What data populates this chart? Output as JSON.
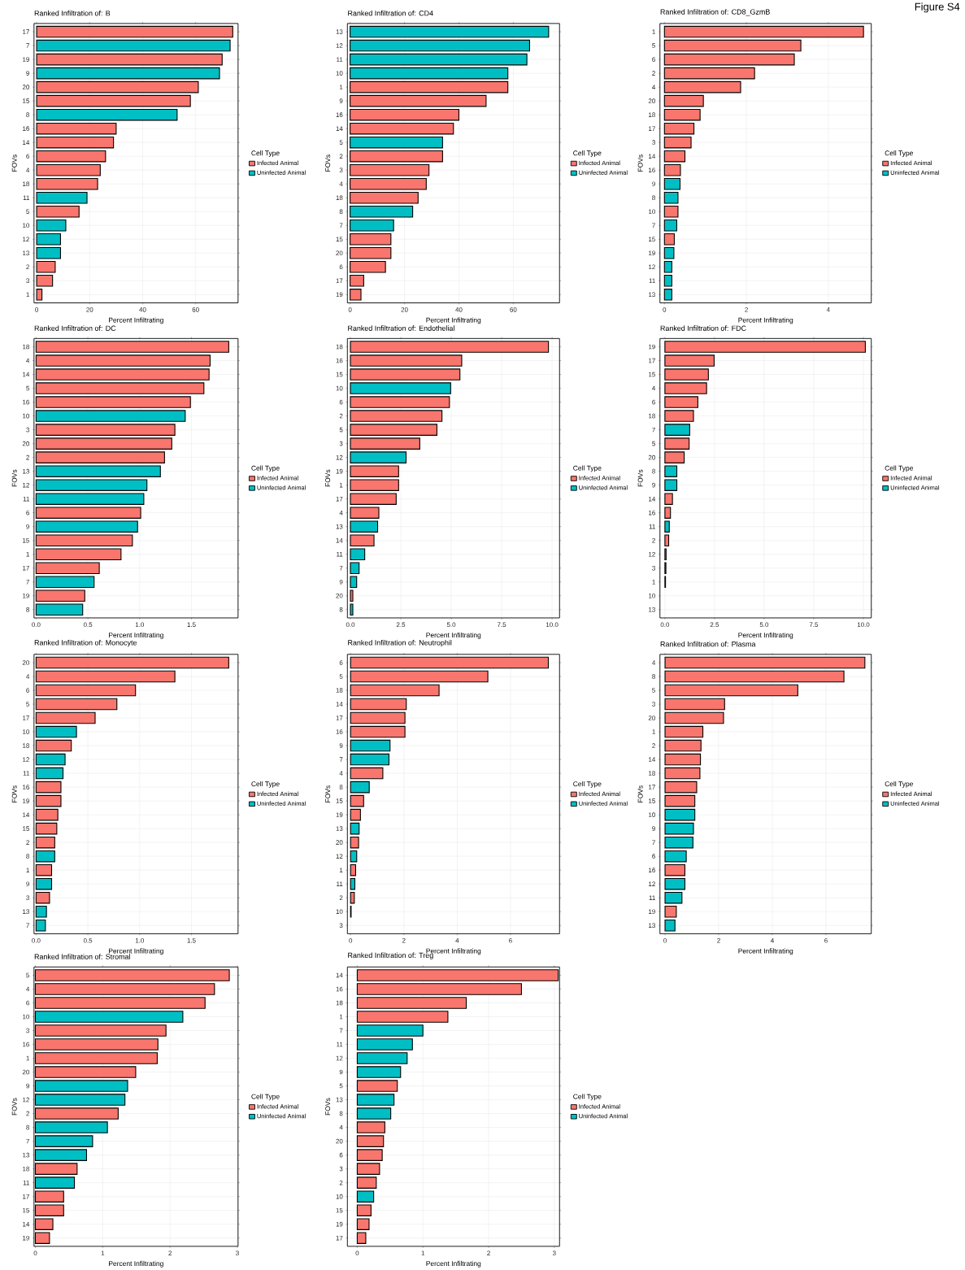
{
  "chart_data": [
    {
      "type": "bar",
      "orientation": "horizontal",
      "title": "Ranked Infiltration of: B",
      "xlabel": "Percent Infiltrating",
      "ylabel": "FOVs",
      "legend_title": "Cell Type",
      "legend": "right",
      "grid": true,
      "categories": [
        "17",
        "7",
        "19",
        "9",
        "20",
        "15",
        "8",
        "16",
        "14",
        "6",
        "4",
        "18",
        "11",
        "5",
        "10",
        "12",
        "13",
        "2",
        "3",
        "1"
      ],
      "series": [
        {
          "name": "Infected Animal",
          "color": "#f8766d",
          "values": [
            74,
            null,
            70,
            null,
            61,
            58,
            null,
            30,
            29,
            26,
            24,
            23,
            null,
            16,
            null,
            null,
            null,
            7,
            6,
            2
          ]
        },
        {
          "name": "Uninfected Animal",
          "color": "#00bfc4",
          "values": [
            null,
            73,
            null,
            69,
            null,
            null,
            53,
            null,
            null,
            null,
            null,
            null,
            19,
            null,
            11,
            9,
            9,
            null,
            null,
            null
          ]
        }
      ],
      "xlim": [
        -1,
        76
      ],
      "xticks": [
        0,
        20,
        40,
        60
      ]
    },
    {
      "type": "bar",
      "orientation": "horizontal",
      "title": "Ranked Infiltration of: CD4",
      "xlabel": "Percent Infiltrating",
      "ylabel": "FOVs",
      "legend_title": "Cell Type",
      "legend": "right",
      "grid": true,
      "categories": [
        "13",
        "12",
        "11",
        "10",
        "1",
        "9",
        "16",
        "14",
        "5",
        "2",
        "3",
        "4",
        "18",
        "8",
        "7",
        "15",
        "20",
        "6",
        "17",
        "19"
      ],
      "series": [
        {
          "name": "Infected Animal",
          "color": "#f8766d",
          "values": [
            null,
            null,
            null,
            null,
            58,
            50,
            40,
            38,
            null,
            34,
            29,
            28,
            25,
            null,
            null,
            15,
            15,
            13,
            5,
            4
          ]
        },
        {
          "name": "Uninfected Animal",
          "color": "#00bfc4",
          "values": [
            73,
            66,
            65,
            58,
            null,
            null,
            null,
            null,
            34,
            null,
            null,
            null,
            null,
            23,
            16,
            null,
            null,
            null,
            null,
            null
          ]
        }
      ],
      "xlim": [
        -1,
        77
      ],
      "xticks": [
        0,
        20,
        40,
        60
      ]
    },
    {
      "type": "bar",
      "orientation": "horizontal",
      "title": "Ranked Infiltration of: CD8_GzmB",
      "xlabel": "Percent Infiltrating",
      "ylabel": "FOVs",
      "legend_title": "Cell Type",
      "legend": "right",
      "grid": true,
      "annotations": [
        "Figure S4"
      ],
      "categories": [
        "1",
        "5",
        "6",
        "2",
        "4",
        "20",
        "18",
        "17",
        "3",
        "14",
        "16",
        "9",
        "8",
        "10",
        "7",
        "15",
        "19",
        "12",
        "11",
        "13"
      ],
      "series": [
        {
          "name": "Infected Animal",
          "color": "#f8766d",
          "values": [
            4.86,
            3.33,
            3.17,
            2.2,
            1.86,
            0.95,
            0.87,
            0.72,
            0.65,
            0.5,
            0.39,
            null,
            null,
            0.33,
            null,
            0.24,
            null,
            null,
            null,
            null
          ]
        },
        {
          "name": "Uninfected Animal",
          "color": "#00bfc4",
          "values": [
            null,
            null,
            null,
            null,
            null,
            null,
            null,
            null,
            null,
            null,
            null,
            0.38,
            0.33,
            null,
            0.3,
            null,
            0.23,
            0.18,
            0.18,
            0.18
          ]
        }
      ],
      "xlim": [
        -0.11,
        5.05
      ],
      "xticks": [
        0,
        2,
        4
      ]
    },
    {
      "type": "bar",
      "orientation": "horizontal",
      "title": "Ranked Infiltration of: DC",
      "xlabel": "Percent Infiltrating",
      "ylabel": "FOVs",
      "legend_title": "Cell Type",
      "legend": "right",
      "grid": true,
      "categories": [
        "18",
        "4",
        "14",
        "5",
        "16",
        "10",
        "3",
        "20",
        "2",
        "13",
        "12",
        "11",
        "6",
        "9",
        "15",
        "1",
        "17",
        "7",
        "19",
        "8"
      ],
      "series": [
        {
          "name": "Infected Animal",
          "color": "#f8766d",
          "values": [
            1.86,
            1.68,
            1.67,
            1.62,
            1.49,
            null,
            1.34,
            1.31,
            1.24,
            null,
            null,
            null,
            1.01,
            null,
            0.93,
            0.82,
            0.61,
            null,
            0.47,
            null
          ]
        },
        {
          "name": "Uninfected Animal",
          "color": "#00bfc4",
          "values": [
            null,
            null,
            null,
            null,
            null,
            1.44,
            null,
            null,
            null,
            1.2,
            1.07,
            1.04,
            null,
            0.98,
            null,
            null,
            null,
            0.56,
            null,
            0.45
          ]
        }
      ],
      "xlim": [
        -0.02,
        1.95
      ],
      "xticks": [
        {
          "value": 0,
          "label": "0.0"
        },
        {
          "value": 0.5,
          "label": "0.5"
        },
        {
          "value": 1,
          "label": "1.0"
        },
        {
          "value": 1.5,
          "label": "1.5"
        }
      ]
    },
    {
      "type": "bar",
      "orientation": "horizontal",
      "title": "Ranked Infiltration of: Endothelial",
      "xlabel": "Percent Infiltrating",
      "ylabel": "FOVs",
      "legend_title": "Cell Type",
      "legend": "right",
      "grid": true,
      "categories": [
        "18",
        "16",
        "15",
        "10",
        "6",
        "2",
        "5",
        "3",
        "12",
        "19",
        "1",
        "17",
        "4",
        "13",
        "14",
        "11",
        "7",
        "9",
        "20",
        "8"
      ],
      "series": [
        {
          "name": "Infected Animal",
          "color": "#f8766d",
          "values": [
            9.82,
            5.52,
            5.43,
            null,
            4.91,
            4.54,
            4.29,
            3.44,
            null,
            2.39,
            2.39,
            2.27,
            1.41,
            null,
            1.17,
            null,
            null,
            null,
            0.12,
            null
          ]
        },
        {
          "name": "Uninfected Animal",
          "color": "#00bfc4",
          "values": [
            null,
            null,
            null,
            4.97,
            null,
            null,
            null,
            null,
            2.76,
            null,
            null,
            null,
            null,
            1.35,
            null,
            0.71,
            0.43,
            0.31,
            null,
            0.12
          ]
        }
      ],
      "xlim": [
        -0.15,
        10.37
      ],
      "xticks": [
        {
          "value": 0,
          "label": "0.0"
        },
        {
          "value": 2.5,
          "label": "2.5"
        },
        {
          "value": 5,
          "label": "5.0"
        },
        {
          "value": 7.5,
          "label": "7.5"
        },
        {
          "value": 10,
          "label": "10.0"
        }
      ]
    },
    {
      "type": "bar",
      "orientation": "horizontal",
      "title": "Ranked Infiltration of: FDC",
      "xlabel": "Percent Infiltrating",
      "ylabel": "FOVs",
      "legend_title": "Cell Type",
      "legend": "right",
      "grid": true,
      "categories": [
        "19",
        "17",
        "15",
        "4",
        "6",
        "18",
        "7",
        "5",
        "20",
        "8",
        "9",
        "14",
        "16",
        "11",
        "2",
        "12",
        "3",
        "1",
        "10",
        "13"
      ],
      "series": [
        {
          "name": "Infected Animal",
          "color": "#f8766d",
          "values": [
            10.1,
            2.48,
            2.19,
            2.1,
            1.66,
            1.44,
            null,
            1.22,
            0.97,
            null,
            null,
            0.38,
            0.28,
            null,
            0.19,
            0.06,
            0.05,
            0.03,
            null,
            null
          ]
        },
        {
          "name": "Uninfected Animal",
          "color": "#00bfc4",
          "values": [
            null,
            null,
            null,
            null,
            null,
            null,
            1.25,
            null,
            null,
            0.6,
            0.6,
            null,
            null,
            0.22,
            null,
            null,
            null,
            null,
            null,
            null
          ]
        }
      ],
      "xlim": [
        -0.25,
        10.4
      ],
      "xticks": [
        {
          "value": 0,
          "label": "0.0"
        },
        {
          "value": 2.5,
          "label": "2.5"
        },
        {
          "value": 5,
          "label": "5.0"
        },
        {
          "value": 7.5,
          "label": "7.5"
        },
        {
          "value": 10,
          "label": "10.0"
        }
      ]
    },
    {
      "type": "bar",
      "orientation": "horizontal",
      "title": "Ranked Infiltration of: Monocyte",
      "xlabel": "Percent Infiltrating",
      "ylabel": "FOVs",
      "legend_title": "Cell Type",
      "legend": "right",
      "grid": true,
      "categories": [
        "20",
        "4",
        "6",
        "5",
        "17",
        "10",
        "18",
        "12",
        "11",
        "16",
        "19",
        "14",
        "15",
        "2",
        "8",
        "1",
        "9",
        "3",
        "13",
        "7"
      ],
      "series": [
        {
          "name": "Infected Animal",
          "color": "#f8766d",
          "values": [
            1.86,
            1.34,
            0.96,
            0.78,
            0.57,
            null,
            0.34,
            null,
            null,
            0.24,
            0.24,
            0.21,
            0.2,
            0.18,
            null,
            0.15,
            null,
            0.13,
            null,
            null
          ]
        },
        {
          "name": "Uninfected Animal",
          "color": "#00bfc4",
          "values": [
            null,
            null,
            null,
            null,
            null,
            0.39,
            null,
            0.28,
            0.26,
            null,
            null,
            null,
            null,
            null,
            0.18,
            null,
            0.15,
            null,
            0.1,
            0.09
          ]
        }
      ],
      "xlim": [
        -0.02,
        1.95
      ],
      "xticks": [
        {
          "value": 0,
          "label": "0.0"
        },
        {
          "value": 0.5,
          "label": "0.5"
        },
        {
          "value": 1,
          "label": "1.0"
        },
        {
          "value": 1.5,
          "label": "1.5"
        }
      ]
    },
    {
      "type": "bar",
      "orientation": "horizontal",
      "title": "Ranked Infiltration of: Neutrophil",
      "xlabel": "Percent Infiltrating",
      "ylabel": "FOVs",
      "legend_title": "Cell Type",
      "legend": "right",
      "grid": true,
      "categories": [
        "6",
        "5",
        "18",
        "14",
        "17",
        "16",
        "9",
        "7",
        "4",
        "8",
        "15",
        "19",
        "13",
        "20",
        "12",
        "1",
        "11",
        "2",
        "10",
        "3"
      ],
      "series": [
        {
          "name": "Infected Animal",
          "color": "#f8766d",
          "values": [
            7.42,
            5.15,
            3.32,
            2.09,
            2.04,
            2.04,
            null,
            null,
            1.21,
            null,
            0.49,
            0.37,
            null,
            0.3,
            null,
            0.19,
            null,
            0.14,
            0.02,
            null
          ]
        },
        {
          "name": "Uninfected Animal",
          "color": "#00bfc4",
          "values": [
            null,
            null,
            null,
            null,
            null,
            null,
            1.48,
            1.44,
            null,
            0.7,
            null,
            null,
            0.32,
            null,
            0.23,
            null,
            0.16,
            null,
            null,
            null
          ]
        }
      ],
      "xlim": [
        -0.12,
        7.84
      ],
      "xticks": [
        0,
        2,
        4,
        6
      ]
    },
    {
      "type": "bar",
      "orientation": "horizontal",
      "title": "Ranked Infiltration of: Plasma",
      "xlabel": "Percent Infiltrating",
      "ylabel": "FOVs",
      "legend_title": "Cell Type",
      "legend": "right",
      "grid": true,
      "categories": [
        "4",
        "8",
        "5",
        "3",
        "20",
        "1",
        "2",
        "14",
        "18",
        "17",
        "15",
        "10",
        "9",
        "7",
        "6",
        "16",
        "12",
        "11",
        "19",
        "13"
      ],
      "series": [
        {
          "name": "Infected Animal",
          "color": "#f8766d",
          "values": [
            7.45,
            6.67,
            4.95,
            2.22,
            2.18,
            1.41,
            1.34,
            1.32,
            1.3,
            1.18,
            1.11,
            null,
            null,
            null,
            null,
            0.74,
            null,
            null,
            0.42,
            null
          ]
        },
        {
          "name": "Uninfected Animal",
          "color": "#00bfc4",
          "values": [
            null,
            null,
            null,
            null,
            null,
            null,
            null,
            null,
            null,
            null,
            null,
            1.11,
            1.06,
            1.04,
            0.79,
            null,
            0.74,
            0.63,
            null,
            0.37
          ]
        }
      ],
      "xlim": [
        -0.19,
        7.69
      ],
      "xticks": [
        0,
        2,
        4,
        6
      ]
    },
    {
      "type": "bar",
      "orientation": "horizontal",
      "title": "Ranked Infiltration of: Stromal",
      "xlabel": "Percent Infiltrating",
      "ylabel": "FOVs",
      "legend_title": "Cell Type",
      "legend": "right",
      "grid": true,
      "categories": [
        "5",
        "4",
        "6",
        "10",
        "3",
        "16",
        "1",
        "20",
        "9",
        "12",
        "2",
        "8",
        "7",
        "13",
        "18",
        "11",
        "17",
        "15",
        "14",
        "19"
      ],
      "series": [
        {
          "name": "Infected Animal",
          "color": "#f8766d",
          "values": [
            2.88,
            2.66,
            2.52,
            null,
            1.94,
            1.82,
            1.81,
            1.49,
            null,
            null,
            1.23,
            null,
            null,
            null,
            0.62,
            null,
            0.42,
            0.42,
            0.26,
            0.21
          ]
        },
        {
          "name": "Uninfected Animal",
          "color": "#00bfc4",
          "values": [
            null,
            null,
            null,
            2.19,
            null,
            null,
            null,
            null,
            1.37,
            1.33,
            null,
            1.07,
            0.85,
            0.76,
            null,
            0.58,
            null,
            null,
            null,
            null
          ]
        }
      ],
      "xlim": [
        -0.02,
        3.01
      ],
      "xticks": [
        0,
        1,
        2,
        3
      ]
    },
    {
      "type": "bar",
      "orientation": "horizontal",
      "title": "Ranked Infiltration of: Treg",
      "xlabel": "Percent Infiltrating",
      "ylabel": "FOVs",
      "legend_title": "Cell Type",
      "legend": "right",
      "grid": true,
      "categories": [
        "14",
        "16",
        "18",
        "1",
        "7",
        "11",
        "12",
        "9",
        "5",
        "13",
        "8",
        "4",
        "20",
        "6",
        "3",
        "2",
        "10",
        "15",
        "19",
        "17"
      ],
      "series": [
        {
          "name": "Infected Animal",
          "color": "#f8766d",
          "values": [
            3.06,
            2.5,
            1.66,
            1.38,
            null,
            null,
            null,
            null,
            0.61,
            null,
            null,
            0.42,
            0.4,
            0.38,
            0.34,
            0.29,
            null,
            0.21,
            0.18,
            0.13
          ]
        },
        {
          "name": "Uninfected Animal",
          "color": "#00bfc4",
          "values": [
            null,
            null,
            null,
            null,
            1.0,
            0.84,
            0.76,
            0.66,
            null,
            0.56,
            0.51,
            null,
            null,
            null,
            null,
            null,
            0.25,
            null,
            null,
            null
          ]
        }
      ],
      "xlim": [
        -0.15,
        3.08
      ],
      "xticks": [
        0,
        1,
        2,
        3
      ]
    }
  ]
}
